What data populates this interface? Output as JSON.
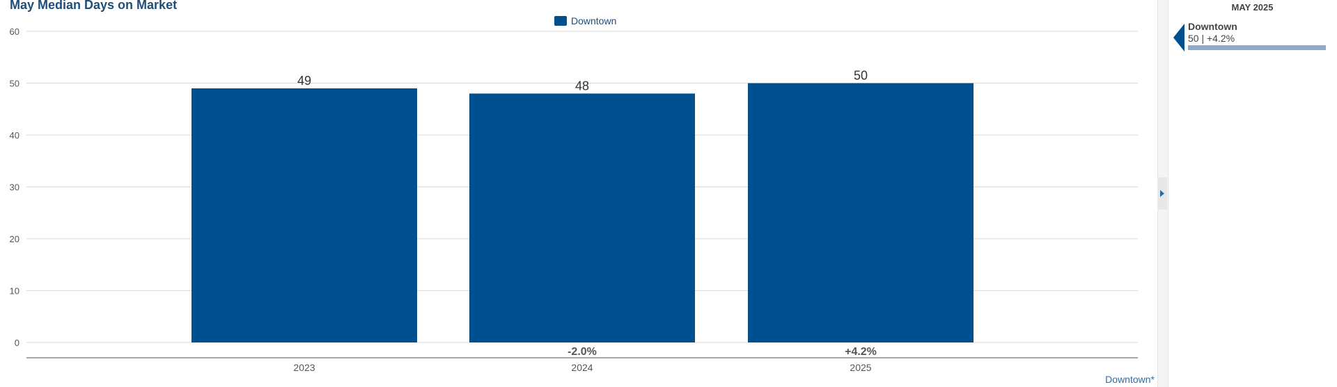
{
  "chart_data": {
    "type": "bar",
    "title": "May Median Days on Market",
    "categories": [
      "2023",
      "2024",
      "2025"
    ],
    "series": [
      {
        "name": "Downtown",
        "values": [
          49,
          48,
          50
        ],
        "color": "#00508f"
      }
    ],
    "bar_labels": [
      "49",
      "48",
      "50"
    ],
    "change_labels": [
      "",
      "-2.0%",
      "+4.2%"
    ],
    "y_ticks": [
      "0",
      "10",
      "20",
      "30",
      "40",
      "50",
      "60"
    ],
    "ylim": [
      0,
      60
    ],
    "grid": true,
    "legend": "top-center"
  },
  "footnote": "Downtown*",
  "side_panel": {
    "period": "MAY 2025",
    "name": "Downtown",
    "value": "50 | +4.2%"
  },
  "colors": {
    "bar": "#00508f",
    "title": "#1f4e79",
    "grid": "#d9d9d9",
    "axis": "#888888",
    "side_bar": "#8ea9c9"
  }
}
